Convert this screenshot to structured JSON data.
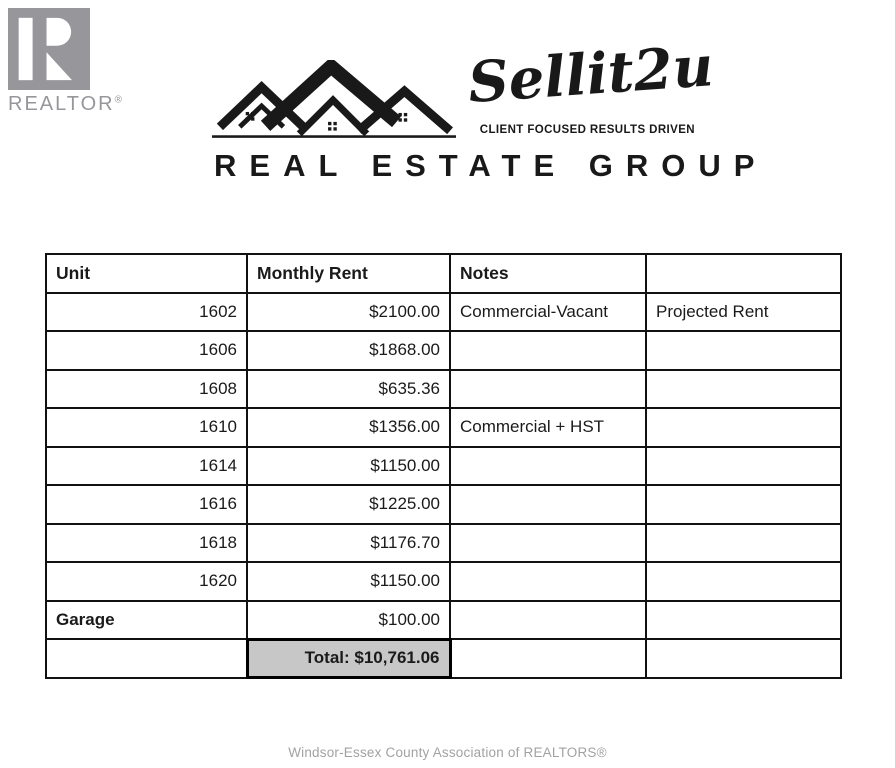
{
  "realtor_logo": {
    "wordmark": "REALTOR",
    "registered_mark": "®",
    "color": "#97979b"
  },
  "brand": {
    "script_name": "Sellit2u",
    "tagline": "CLIENT FOCUSED  RESULTS DRIVEN",
    "group_wordmark": "REAL ESTATE GROUP",
    "color": "#191919"
  },
  "table": {
    "headers": [
      "Unit",
      "Monthly Rent",
      "Notes",
      ""
    ],
    "rows": [
      {
        "unit": "1602",
        "rent": "$2100.00",
        "note": "Commercial-Vacant",
        "extra": "Projected Rent"
      },
      {
        "unit": "1606",
        "rent": "$1868.00",
        "note": "",
        "extra": ""
      },
      {
        "unit": "1608",
        "rent": "$635.36",
        "note": "",
        "extra": ""
      },
      {
        "unit": "1610",
        "rent": "$1356.00",
        "note": "Commercial + HST",
        "extra": ""
      },
      {
        "unit": "1614",
        "rent": "$1150.00",
        "note": "",
        "extra": ""
      },
      {
        "unit": "1616",
        "rent": "$1225.00",
        "note": "",
        "extra": ""
      },
      {
        "unit": "1618",
        "rent": "$1176.70",
        "note": "",
        "extra": ""
      },
      {
        "unit": "1620",
        "rent": "$1150.00",
        "note": "",
        "extra": ""
      },
      {
        "unit": "Garage",
        "unit_left": true,
        "unit_bold": true,
        "rent": "$100.00",
        "note": "",
        "extra": ""
      }
    ],
    "total_row": {
      "unit": "",
      "total_label": "Total: $10,761.06",
      "note": "",
      "extra": ""
    },
    "total_cell_bg": "#c7c7c7",
    "border_color": "#111111"
  },
  "footer": {
    "credit": "Windsor-Essex County Association of REALTORS®"
  }
}
